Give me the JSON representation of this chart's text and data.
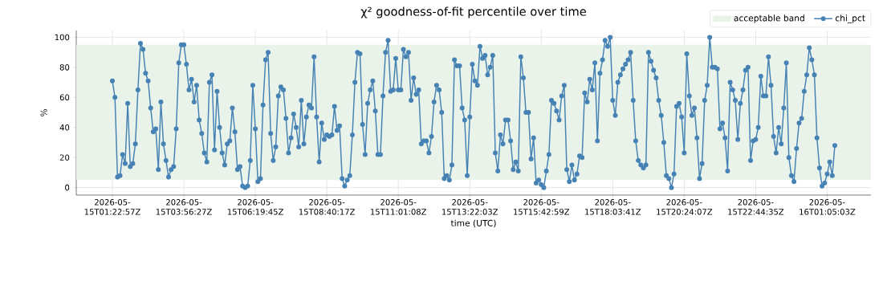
{
  "chart_data": {
    "type": "line",
    "title": "χ² goodness-of-fit percentile over time",
    "xlabel": "time (UTC)",
    "ylabel": "%",
    "categories": [
      "2026-05-15T01:22:57Z",
      null,
      null,
      null,
      null,
      null,
      null,
      null,
      null,
      null,
      null,
      null,
      null,
      null,
      null,
      null,
      null,
      null,
      null,
      null,
      null,
      null,
      null,
      null,
      null,
      null,
      null,
      null,
      "2026-05-15T03:56:27Z",
      null,
      null,
      null,
      null,
      null,
      null,
      null,
      null,
      null,
      null,
      null,
      null,
      null,
      null,
      null,
      null,
      null,
      null,
      null,
      null,
      null,
      null,
      null,
      null,
      null,
      null,
      null,
      "2026-05-15T06:19:45Z",
      null,
      null,
      null,
      null,
      null,
      null,
      null,
      null,
      null,
      null,
      null,
      null,
      null,
      null,
      null,
      null,
      null,
      null,
      null,
      null,
      null,
      null,
      null,
      null,
      null,
      null,
      null,
      "2026-05-15T08:40:17Z",
      null,
      null,
      null,
      null,
      null,
      null,
      null,
      null,
      null,
      null,
      null,
      null,
      null,
      null,
      null,
      null,
      null,
      null,
      null,
      null,
      null,
      null,
      null,
      null,
      null,
      null,
      null,
      "2026-05-15T11:01:08Z",
      null,
      null,
      null,
      null,
      null,
      null,
      null,
      null,
      null,
      null,
      null,
      null,
      null,
      null,
      null,
      null,
      null,
      null,
      null,
      null,
      null,
      null,
      null,
      null,
      null,
      null,
      null,
      "2026-05-15T13:22:03Z",
      null,
      null,
      null,
      null,
      null,
      null,
      null,
      null,
      null,
      null,
      null,
      null,
      null,
      null,
      null,
      null,
      null,
      null,
      null,
      null,
      null,
      null,
      null,
      null,
      null,
      null,
      null,
      "2026-05-15T15:42:59Z",
      null,
      null,
      null,
      null,
      null,
      null,
      null,
      null,
      null,
      null,
      null,
      null,
      null,
      null,
      null,
      null,
      null,
      null,
      null,
      null,
      null,
      null,
      null,
      null,
      null,
      null,
      null,
      "2026-05-15T18:03:41Z",
      null,
      null,
      null,
      null,
      null,
      null,
      null,
      null,
      null,
      null,
      null,
      null,
      null,
      null,
      null,
      null,
      null,
      null,
      null,
      null,
      null,
      null,
      null,
      null,
      null,
      null,
      null,
      "2026-05-15T20:24:07Z",
      null,
      null,
      null,
      null,
      null,
      null,
      null,
      null,
      null,
      null,
      null,
      null,
      null,
      null,
      null,
      null,
      null,
      null,
      null,
      null,
      null,
      null,
      null,
      null,
      null,
      null,
      null,
      "2026-05-15T22:44:35Z",
      null,
      null,
      null,
      null,
      null,
      null,
      null,
      null,
      null,
      null,
      null,
      null,
      null,
      null,
      null,
      null,
      null,
      null,
      null,
      null,
      null,
      null,
      null,
      null,
      null,
      null,
      null,
      "2026-05-16T01:05:03Z",
      null,
      null,
      null
    ],
    "series": [
      {
        "name": "chi_pct",
        "color": "#4682b4",
        "values": [
          71,
          60,
          7,
          8,
          22,
          16,
          56,
          14,
          16,
          29,
          65,
          96,
          92,
          76,
          71,
          53,
          37,
          39,
          12,
          57,
          29,
          18,
          7,
          12,
          14,
          39,
          83,
          95,
          95,
          82,
          65,
          72,
          57,
          68,
          45,
          36,
          23,
          17,
          70,
          75,
          25,
          64,
          40,
          23,
          15,
          29,
          31,
          53,
          37,
          12,
          14,
          1,
          0,
          1,
          18,
          68,
          39,
          4,
          6,
          55,
          85,
          90,
          36,
          18,
          27,
          61,
          67,
          65,
          46,
          23,
          33,
          49,
          40,
          27,
          58,
          29,
          47,
          55,
          53,
          87,
          47,
          17,
          43,
          32,
          35,
          34,
          35,
          54,
          38,
          41,
          6,
          1,
          5,
          8,
          35,
          70,
          90,
          89,
          42,
          22,
          56,
          65,
          71,
          51,
          22,
          22,
          61,
          90,
          98,
          64,
          65,
          86,
          65,
          65,
          92,
          87,
          90,
          58,
          73,
          62,
          65,
          29,
          31,
          31,
          23,
          34,
          57,
          68,
          65,
          50,
          6,
          8,
          5,
          15,
          85,
          81,
          81,
          53,
          45,
          8,
          47,
          82,
          71,
          68,
          94,
          86,
          88,
          75,
          80,
          88,
          23,
          11,
          35,
          29,
          45,
          45,
          31,
          12,
          17,
          11,
          87,
          73,
          50,
          50,
          19,
          33,
          3,
          5,
          2,
          0,
          11,
          22,
          58,
          56,
          51,
          45,
          61,
          68,
          12,
          4,
          15,
          5,
          9,
          21,
          20,
          63,
          57,
          72,
          65,
          83,
          31,
          76,
          85,
          98,
          94,
          100,
          58,
          48,
          70,
          75,
          79,
          82,
          85,
          90,
          58,
          31,
          18,
          15,
          13,
          15,
          90,
          84,
          78,
          73,
          58,
          48,
          30,
          8,
          6,
          0,
          9,
          54,
          56,
          47,
          23,
          89,
          61,
          48,
          53,
          33,
          6,
          16,
          58,
          68,
          100,
          80,
          80,
          79,
          39,
          43,
          33,
          11,
          70,
          65,
          58,
          32,
          56,
          65,
          78,
          80,
          18,
          31,
          32,
          40,
          74,
          61,
          61,
          87,
          68,
          34,
          23,
          40,
          29,
          53,
          83,
          20,
          8,
          4,
          26,
          43,
          46,
          64,
          75,
          93,
          85,
          75,
          33,
          13,
          1,
          3,
          9,
          17,
          8,
          28
        ]
      }
    ],
    "bands": [
      {
        "axis": "y",
        "from": 5,
        "to": 95,
        "label": "acceptable band",
        "color": "#e9f3e9"
      }
    ],
    "ylim": [
      -5,
      104.5
    ],
    "yticks": [
      0,
      20,
      40,
      60,
      80,
      100
    ],
    "grid": true,
    "legend": "top right",
    "marker": "circle"
  }
}
